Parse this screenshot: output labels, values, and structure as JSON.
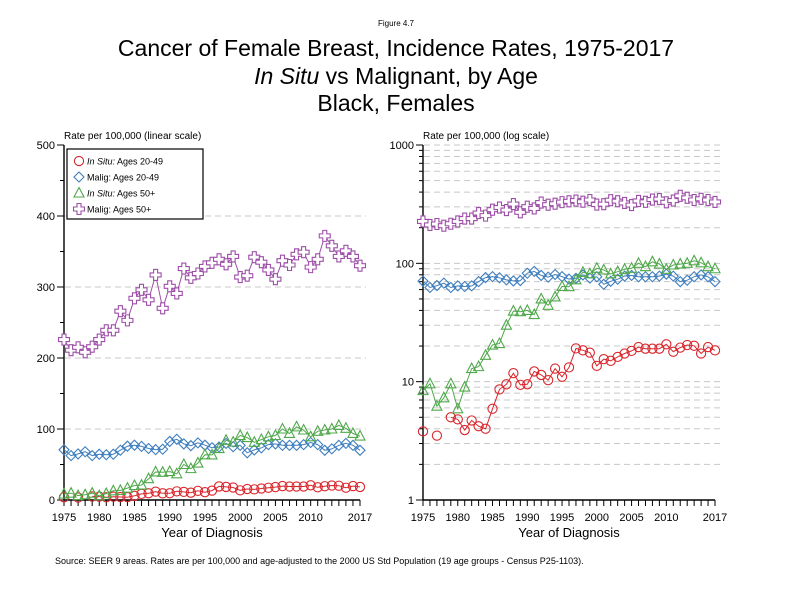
{
  "figure_label": "Figure 4.7",
  "title": {
    "line1": "Cancer of Female Breast, Incidence Rates, 1975-2017",
    "line2_italic": "In Situ",
    "line2_rest": " vs Malignant, by Age",
    "line3": "Black, Females"
  },
  "source": "Source: SEER 9 areas. Rates are per 100,000 and age-adjusted to the 2000 US Std Population (19 age groups - Census P25-1103).",
  "chart_data": [
    {
      "type": "line",
      "title": "",
      "ylabel": "Rate per 100,000 (linear scale)",
      "xlabel": "Year of Diagnosis",
      "yscale": "linear",
      "ylim": [
        0,
        500
      ],
      "yticks": [
        0,
        100,
        200,
        300,
        400,
        500
      ],
      "ytick_labels": [
        "0",
        "100",
        "200",
        "300",
        "400",
        "500"
      ],
      "yminor": [
        50,
        150,
        250,
        350,
        450
      ],
      "grid": true,
      "grid_values": [
        100,
        200,
        300,
        400
      ],
      "xlim": [
        1975,
        2017
      ],
      "xticks": [
        1975,
        1980,
        1985,
        1990,
        1995,
        2000,
        2005,
        2010,
        2017
      ],
      "xtick_labels": [
        "1975",
        "1980",
        "1985",
        "1990",
        "1995",
        "2000",
        "2005",
        "2010",
        "2017"
      ],
      "legend": {
        "placement": "top-left",
        "entries": [
          {
            "series": "insitu_20_49",
            "italic": "In Situ:",
            "text": " Ages 20-49"
          },
          {
            "series": "malig_20_49",
            "italic": "",
            "text": "Malig: Ages 20-49"
          },
          {
            "series": "insitu_50plus",
            "italic": "In Situ:",
            "text": " Ages 50+"
          },
          {
            "series": "malig_50plus",
            "italic": "",
            "text": "Malig: Ages 50+"
          }
        ]
      },
      "x": [
        1975,
        1976,
        1977,
        1978,
        1979,
        1980,
        1981,
        1982,
        1983,
        1984,
        1985,
        1986,
        1987,
        1988,
        1989,
        1990,
        1991,
        1992,
        1993,
        1994,
        1995,
        1996,
        1997,
        1998,
        1999,
        2000,
        2001,
        2002,
        2003,
        2004,
        2005,
        2006,
        2007,
        2008,
        2009,
        2010,
        2011,
        2012,
        2013,
        2014,
        2015,
        2016,
        2017
      ],
      "series": [
        {
          "key": "insitu_20_49",
          "name": "In Situ: Ages 20-49",
          "marker": "circle",
          "color": "#d9262c",
          "values": [
            3.8,
            null,
            3.5,
            null,
            5.0,
            4.8,
            3.9,
            4.7,
            4.2,
            4.0,
            5.9,
            8.6,
            9.5,
            11.8,
            9.4,
            9.5,
            12.2,
            11.4,
            10.3,
            12.9,
            11.0,
            13.2,
            19.1,
            18.4,
            17.6,
            13.6,
            15.5,
            15.0,
            16.2,
            17.3,
            18.2,
            19.6,
            19.0,
            19.0,
            19.0,
            20.7,
            17.9,
            19.4,
            20.4,
            20.1,
            17.3,
            19.6,
            18.4
          ]
        },
        {
          "key": "malig_20_49",
          "name": "Malig: Ages 20-49",
          "marker": "diamond",
          "color": "#3f7fbf",
          "values": [
            70.7,
            62.5,
            64.9,
            68.0,
            62.5,
            64.5,
            63.7,
            64.5,
            70.1,
            75.8,
            77.2,
            75.5,
            72.5,
            71.0,
            71.5,
            82.5,
            85.5,
            79.0,
            76.5,
            80.5,
            77.2,
            73.6,
            74.7,
            79.8,
            75.0,
            77.0,
            66.5,
            70.5,
            73.4,
            78.0,
            79.0,
            77.0,
            77.0,
            77.0,
            78.0,
            81.0,
            78.0,
            70.0,
            72.0,
            77.0,
            79.8,
            77.0,
            70.0
          ]
        },
        {
          "key": "insitu_50plus",
          "name": "In Situ: Ages 50+",
          "marker": "triangle",
          "color": "#4fa84a",
          "values": [
            8.4,
            9.6,
            6.2,
            7.3,
            9.6,
            5.9,
            9.0,
            12.9,
            13.4,
            16.7,
            20.4,
            21.0,
            30.0,
            39.5,
            39.0,
            40.0,
            36.9,
            50.0,
            44.2,
            52.0,
            63.7,
            63.5,
            72.5,
            84.0,
            81.5,
            90.8,
            87.9,
            81.3,
            85.0,
            89.0,
            90.8,
            100.0,
            93.7,
            103.0,
            98.6,
            89.0,
            96.8,
            98.6,
            100.0,
            105.0,
            101.0,
            93.7,
            90.0
          ]
        },
        {
          "key": "malig_50plus",
          "name": "Malig: Ages 50+",
          "marker": "plus",
          "color": "#9d4ea8",
          "values": [
            226,
            211,
            215,
            208,
            216,
            226,
            239,
            239,
            266,
            253,
            284,
            296,
            282,
            317,
            270,
            301,
            291,
            326,
            313,
            319,
            329,
            334,
            339,
            332,
            343,
            314,
            316,
            342,
            335,
            324,
            311,
            337,
            331,
            346,
            349,
            328,
            339,
            372,
            358,
            343,
            351,
            343,
            330
          ]
        }
      ]
    },
    {
      "type": "line",
      "title": "",
      "ylabel": "Rate per 100,000 (log scale)",
      "xlabel": "Year of Diagnosis",
      "yscale": "log",
      "ylim": [
        1,
        1000
      ],
      "yticks": [
        1,
        10,
        100,
        1000
      ],
      "ytick_labels": [
        "1",
        "10",
        "100",
        "1000"
      ],
      "yminor": [
        2,
        3,
        4,
        5,
        6,
        7,
        8,
        9,
        20,
        30,
        40,
        50,
        60,
        70,
        80,
        90,
        200,
        300,
        400,
        500,
        600,
        700,
        800,
        900
      ],
      "grid": true,
      "grid_values": [
        2,
        3,
        4,
        5,
        6,
        7,
        8,
        9,
        10,
        20,
        30,
        40,
        50,
        60,
        70,
        80,
        90,
        100,
        200,
        300,
        400,
        500,
        600,
        700,
        800,
        900,
        1000
      ],
      "xlim": [
        1975,
        2017
      ],
      "xticks": [
        1975,
        1980,
        1985,
        1990,
        1995,
        2000,
        2005,
        2010,
        2017
      ],
      "xtick_labels": [
        "1975",
        "1980",
        "1985",
        "1990",
        "1995",
        "2000",
        "2005",
        "2010",
        "2017"
      ],
      "x": [
        1975,
        1976,
        1977,
        1978,
        1979,
        1980,
        1981,
        1982,
        1983,
        1984,
        1985,
        1986,
        1987,
        1988,
        1989,
        1990,
        1991,
        1992,
        1993,
        1994,
        1995,
        1996,
        1997,
        1998,
        1999,
        2000,
        2001,
        2002,
        2003,
        2004,
        2005,
        2006,
        2007,
        2008,
        2009,
        2010,
        2011,
        2012,
        2013,
        2014,
        2015,
        2016,
        2017
      ],
      "series": [
        {
          "key": "insitu_20_49",
          "name": "In Situ: Ages 20-49",
          "marker": "circle",
          "color": "#d9262c",
          "values": [
            3.8,
            null,
            3.5,
            null,
            5.0,
            4.8,
            3.9,
            4.7,
            4.2,
            4.0,
            5.9,
            8.6,
            9.5,
            11.8,
            9.4,
            9.5,
            12.2,
            11.4,
            10.3,
            12.9,
            11.0,
            13.2,
            19.1,
            18.4,
            17.6,
            13.6,
            15.5,
            15.0,
            16.2,
            17.3,
            18.2,
            19.6,
            19.0,
            19.0,
            19.0,
            20.7,
            17.9,
            19.4,
            20.4,
            20.1,
            17.3,
            19.6,
            18.4
          ]
        },
        {
          "key": "malig_20_49",
          "name": "Malig: Ages 20-49",
          "marker": "diamond",
          "color": "#3f7fbf",
          "values": [
            70.7,
            62.5,
            64.9,
            68.0,
            62.5,
            64.5,
            63.7,
            64.5,
            70.1,
            75.8,
            77.2,
            75.5,
            72.5,
            71.0,
            71.5,
            82.5,
            85.5,
            79.0,
            76.5,
            80.5,
            77.2,
            73.6,
            74.7,
            79.8,
            75.0,
            77.0,
            66.5,
            70.5,
            73.4,
            78.0,
            79.0,
            77.0,
            77.0,
            77.0,
            78.0,
            81.0,
            78.0,
            70.0,
            72.0,
            77.0,
            79.8,
            77.0,
            70.0
          ]
        },
        {
          "key": "insitu_50plus",
          "name": "In Situ: Ages 50+",
          "marker": "triangle",
          "color": "#4fa84a",
          "values": [
            8.4,
            9.6,
            6.2,
            7.3,
            9.6,
            5.9,
            9.0,
            12.9,
            13.4,
            16.7,
            20.4,
            21.0,
            30.0,
            39.5,
            39.0,
            40.0,
            36.9,
            50.0,
            44.2,
            52.0,
            63.7,
            63.5,
            72.5,
            84.0,
            81.5,
            90.8,
            87.9,
            81.3,
            85.0,
            89.0,
            90.8,
            100.0,
            93.7,
            103.0,
            98.6,
            89.0,
            96.8,
            98.6,
            100.0,
            105.0,
            101.0,
            93.7,
            90.0
          ]
        },
        {
          "key": "malig_50plus",
          "name": "Malig: Ages 50+",
          "marker": "plus",
          "color": "#9d4ea8",
          "values": [
            226,
            211,
            215,
            208,
            216,
            226,
            239,
            239,
            266,
            253,
            284,
            296,
            282,
            317,
            270,
            301,
            291,
            326,
            313,
            319,
            329,
            334,
            339,
            332,
            343,
            314,
            316,
            342,
            335,
            324,
            311,
            337,
            331,
            346,
            349,
            328,
            339,
            372,
            358,
            343,
            351,
            343,
            330
          ]
        }
      ]
    }
  ]
}
